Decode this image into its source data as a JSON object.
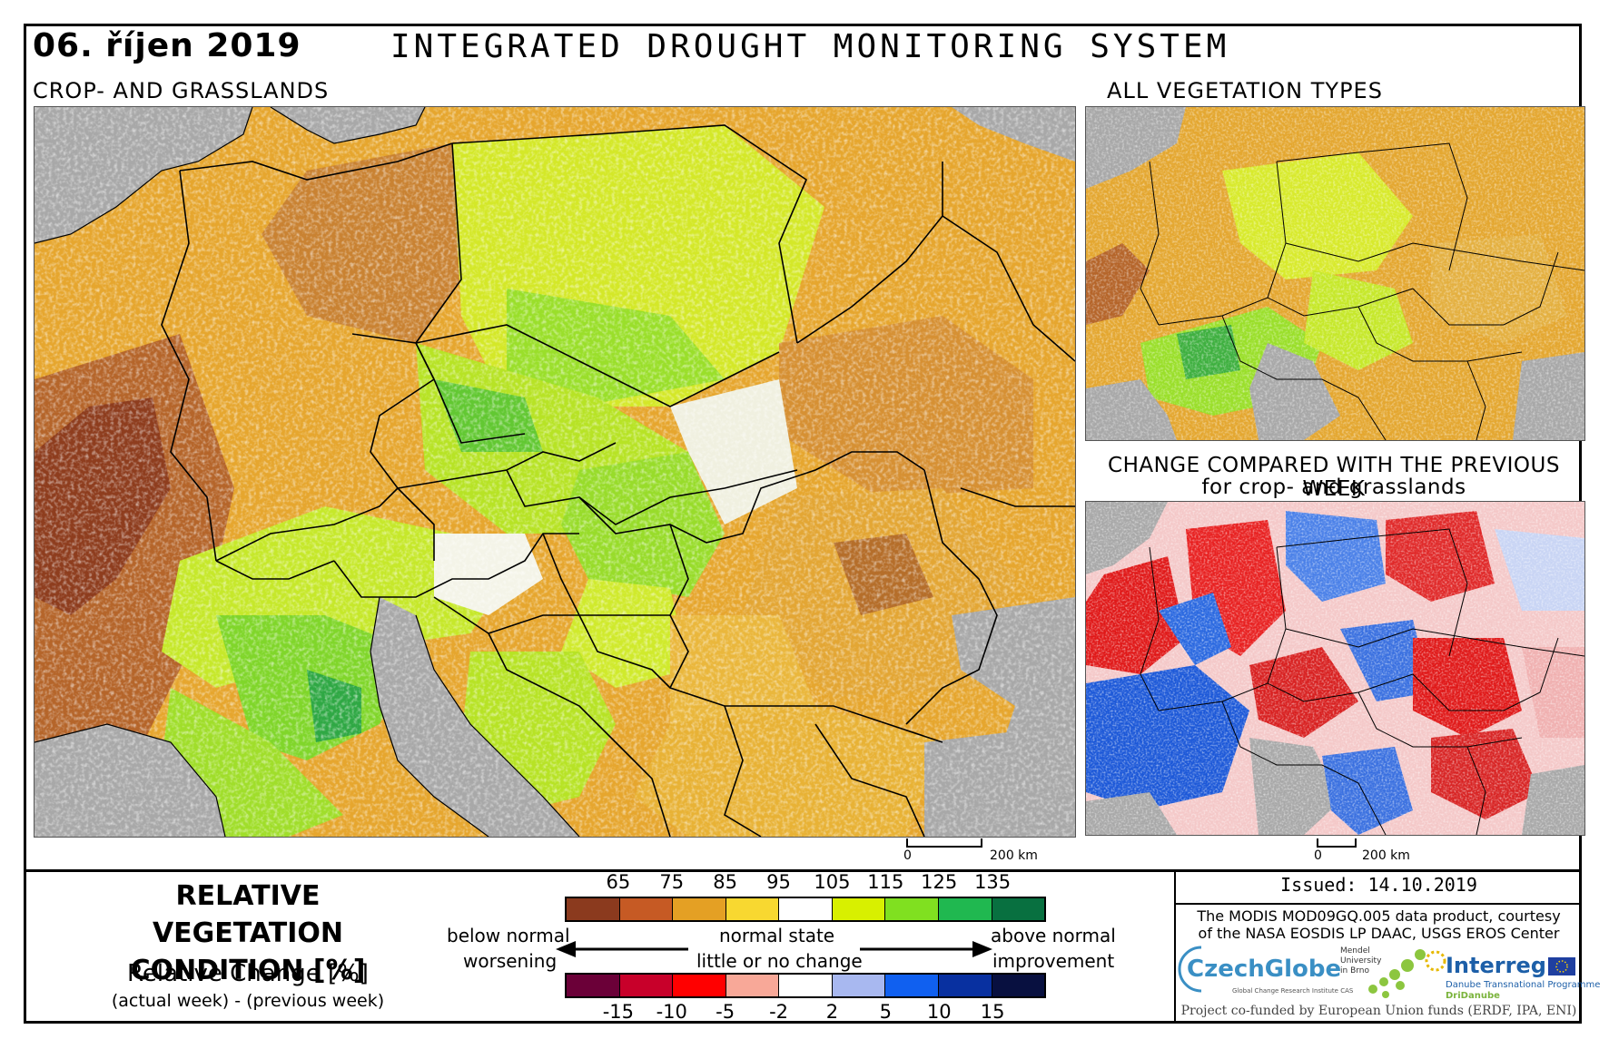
{
  "header": {
    "date": "06. říjen 2019",
    "title": "INTEGRATED DROUGHT MONITORING SYSTEM",
    "left_subtitle": "CROP- AND GRASSLANDS",
    "right_top_subtitle": "ALL VEGETATION TYPES",
    "right_bottom_subtitle_1": "CHANGE COMPARED WITH THE PREVIOUS WEEK",
    "right_bottom_subtitle_2": "for crop- and grasslands"
  },
  "scale": {
    "main_zero": "0",
    "main_label": "200 km",
    "small_zero": "0",
    "small_label": "200 km"
  },
  "legend": {
    "title_1": "RELATIVE VEGETATION",
    "title_2": "CONDITION [%]",
    "change_title": "Relative Change [%]",
    "change_sub": "(actual week) - (previous week)",
    "condition_ticks": [
      "65",
      "75",
      "85",
      "95",
      "105",
      "115",
      "125",
      "135"
    ],
    "condition_colors": [
      "#8b3a1e",
      "#c65a24",
      "#e4a024",
      "#f8d830",
      "#ffffff",
      "#d8f000",
      "#80e020",
      "#20b850",
      "#087040"
    ],
    "change_ticks": [
      "-15",
      "-10",
      "-5",
      "-2",
      "2",
      "5",
      "10",
      "15"
    ],
    "change_colors": [
      "#6b0038",
      "#c8002a",
      "#ff0000",
      "#f8a898",
      "#ffffff",
      "#a8b8f0",
      "#1060f0",
      "#0830a0",
      "#081040"
    ],
    "below_normal": "below normal",
    "worsening": "worsening",
    "normal_state": "normal state",
    "little_change": "little or no change",
    "above_normal": "above normal",
    "improvement": "improvement"
  },
  "footer": {
    "issued": "Issued: 14.10.2019",
    "courtesy_1": "The MODIS MOD09GQ.005 data product, courtesy",
    "courtesy_2": "of the NASA EOSDIS LP DAAC, USGS EROS Center",
    "cofunded": "Project co-funded by European Union funds (ERDF, IPA, ENI)",
    "logo_czechglobe": "CzechGlobe",
    "logo_czechglobe_sub": "Global Change Research Institute CAS",
    "logo_mendel": "Mendel\nUniversity\nin Brno",
    "logo_interreg": "Interreg",
    "logo_interreg_sub_1": "Danube Transnational Programme",
    "logo_interreg_sub_2": "DriDanube"
  },
  "map_colors": {
    "sea": "#a8a8a8",
    "border": "#000000"
  }
}
